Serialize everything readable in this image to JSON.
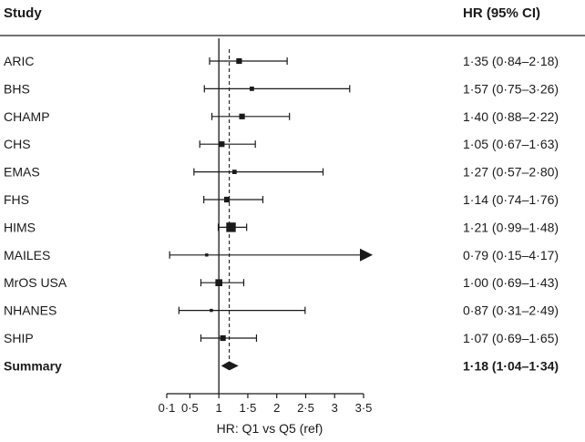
{
  "header": {
    "study_label": "Study",
    "hr_label": "HR (95% CI)"
  },
  "chart_data": {
    "type": "forest",
    "xlabel": "HR: Q1 vs Q5 (ref)",
    "x_ticks": [
      0.1,
      0.5,
      1,
      1.5,
      2,
      2.5,
      3,
      3.5
    ],
    "x_tick_labels": [
      "0·1",
      "0·5",
      "1",
      "1·5",
      "2",
      "2·5",
      "3",
      "3·5"
    ],
    "xlim": [
      0.1,
      3.5
    ],
    "reference_line": 1,
    "summary_line": 1.18,
    "studies": [
      {
        "name": "ARIC",
        "hr": 1.35,
        "lo": 0.84,
        "hi": 2.18,
        "ci_text": "1·35 (0·84–2·18)",
        "weight": 3
      },
      {
        "name": "BHS",
        "hr": 1.57,
        "lo": 0.75,
        "hi": 3.26,
        "ci_text": "1·57 (0·75–3·26)",
        "weight": 2
      },
      {
        "name": "CHAMP",
        "hr": 1.4,
        "lo": 0.88,
        "hi": 2.22,
        "ci_text": "1·40 (0·88–2·22)",
        "weight": 3
      },
      {
        "name": "CHS",
        "hr": 1.05,
        "lo": 0.67,
        "hi": 1.63,
        "ci_text": "1·05 (0·67–1·63)",
        "weight": 3
      },
      {
        "name": "EMAS",
        "hr": 1.27,
        "lo": 0.57,
        "hi": 2.8,
        "ci_text": "1·27 (0·57–2·80)",
        "weight": 2
      },
      {
        "name": "FHS",
        "hr": 1.14,
        "lo": 0.74,
        "hi": 1.76,
        "ci_text": "1·14 (0·74–1·76)",
        "weight": 3
      },
      {
        "name": "HIMS",
        "hr": 1.21,
        "lo": 0.99,
        "hi": 1.48,
        "ci_text": "1·21 (0·99–1·48)",
        "weight": 6
      },
      {
        "name": "MAILES",
        "hr": 0.79,
        "lo": 0.15,
        "hi": 4.17,
        "ci_text": "0·79 (0·15–4·17)",
        "weight": 1,
        "arrow": true
      },
      {
        "name": "MrOS USA",
        "hr": 1.0,
        "lo": 0.69,
        "hi": 1.43,
        "ci_text": "1·00 (0·69–1·43)",
        "weight": 4
      },
      {
        "name": "NHANES",
        "hr": 0.87,
        "lo": 0.31,
        "hi": 2.49,
        "ci_text": "0·87 (0·31–2·49)",
        "weight": 1
      },
      {
        "name": "SHIP",
        "hr": 1.07,
        "lo": 0.69,
        "hi": 1.65,
        "ci_text": "1·07 (0·69–1·65)",
        "weight": 3
      }
    ],
    "summary": {
      "name": "Summary",
      "hr": 1.18,
      "lo": 1.04,
      "hi": 1.34,
      "ci_text": "1·18 (1·04–1·34)"
    }
  }
}
